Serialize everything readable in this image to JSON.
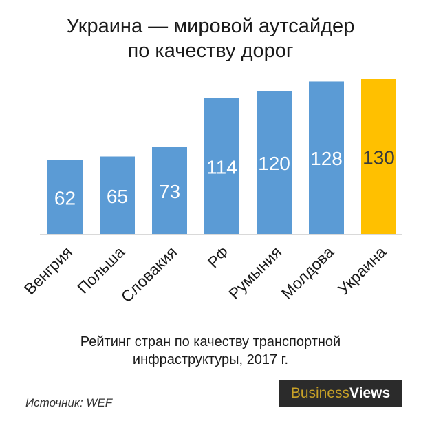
{
  "title_line1": "Украина — мировой аутсайдер",
  "title_line2": "по качеству дорог",
  "chart_data": {
    "type": "bar",
    "categories": [
      "Венгрия",
      "Польша",
      "Словакия",
      "РФ",
      "Румыния",
      "Молдова",
      "Украина"
    ],
    "values": [
      62,
      65,
      73,
      114,
      120,
      128,
      130
    ],
    "highlight_category": "Украина",
    "colors": {
      "bar": "#5b9bd5",
      "highlight": "#ffc000",
      "label": "#ffffff",
      "highlight_label": "#3a3a3a"
    },
    "ylim": [
      0,
      130
    ],
    "grid": false,
    "legend": "none"
  },
  "subtitle_line1": "Рейтинг стран по качеству транспортной",
  "subtitle_line2": "инфраструктуры, 2017 г.",
  "source": "Источник: WEF",
  "logo": {
    "part1": "Business",
    "part2": "Views"
  }
}
